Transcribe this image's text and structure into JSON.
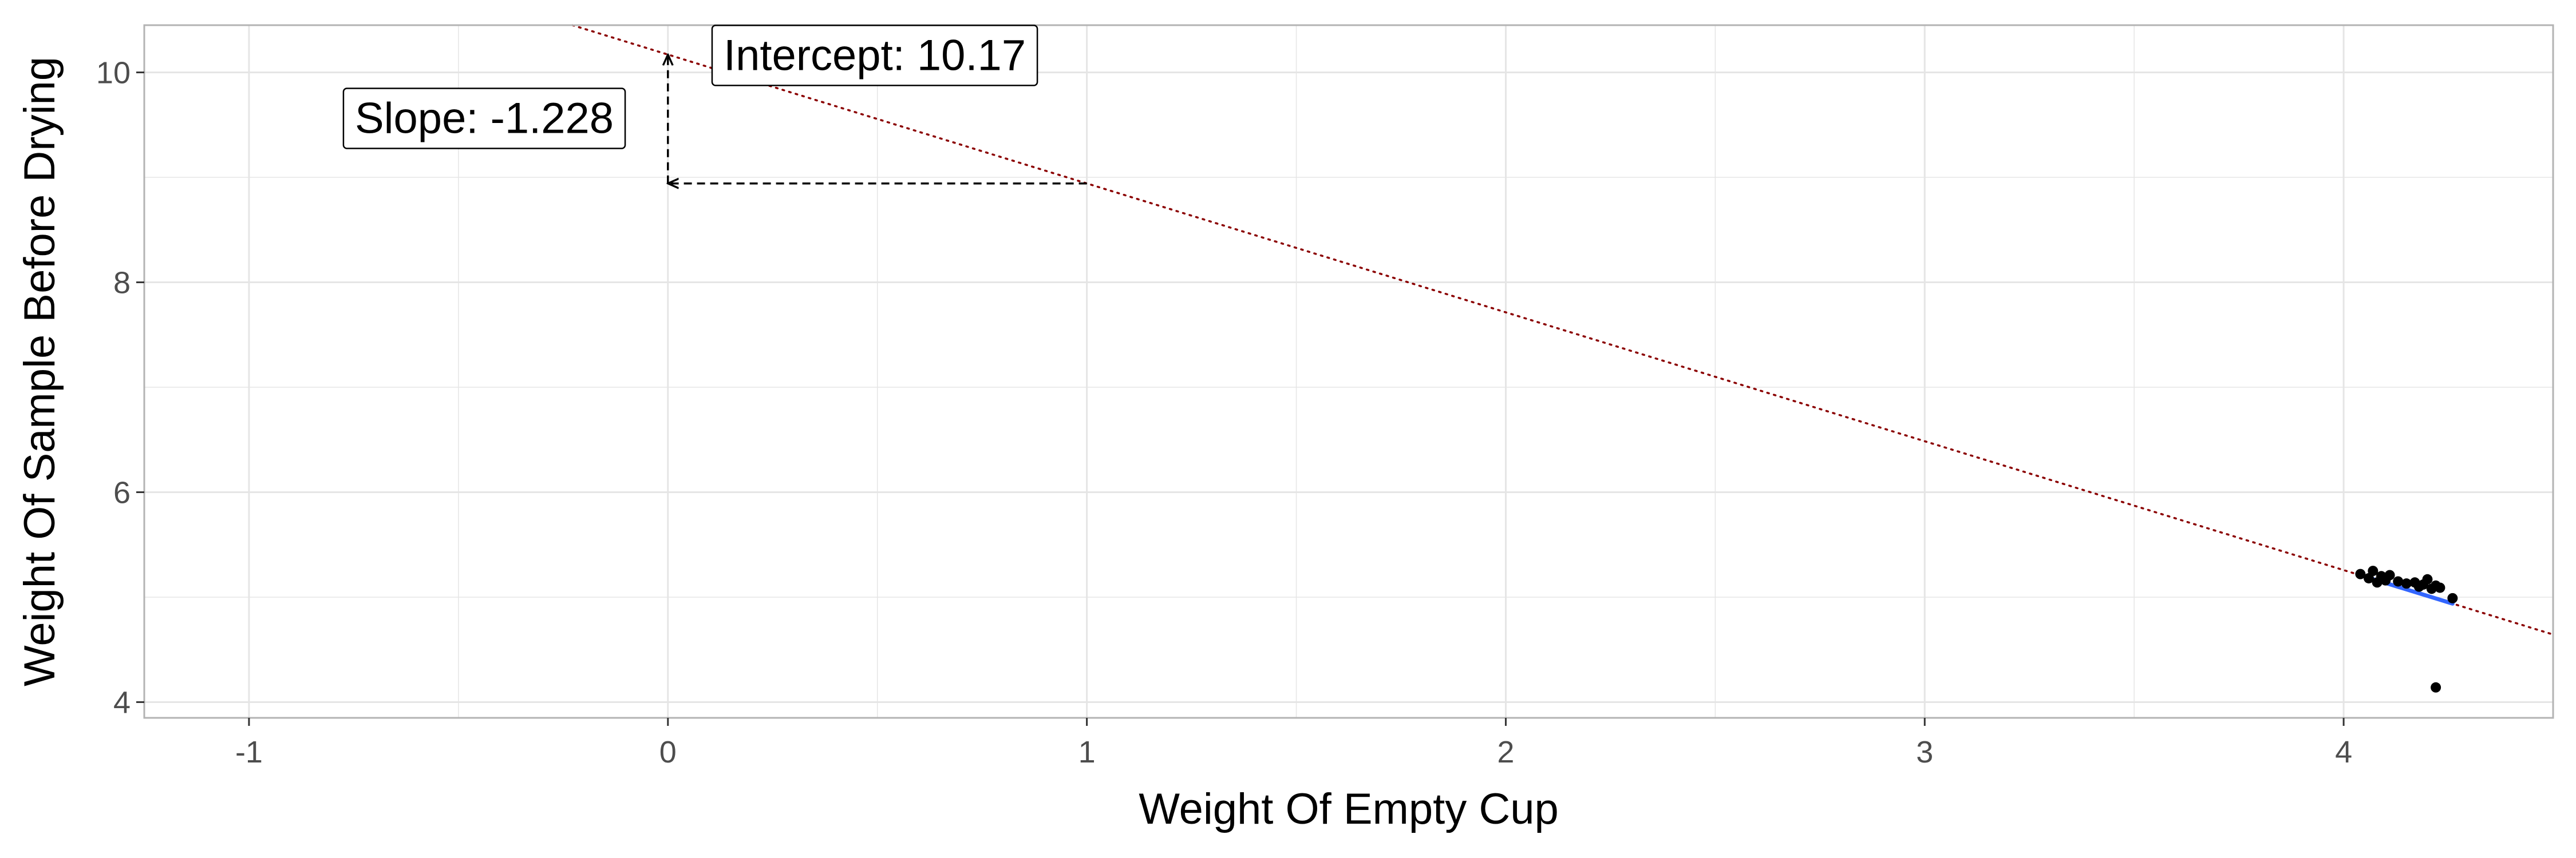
{
  "chart_data": {
    "type": "scatter",
    "title": "",
    "xlabel": "Weight Of Empty Cup",
    "ylabel": "Weight Of Sample Before Drying",
    "xlim": [
      -1.25,
      4.5
    ],
    "ylim": [
      3.85,
      10.45
    ],
    "x_ticks": [
      -1,
      0,
      1,
      2,
      3,
      4
    ],
    "y_ticks": [
      4,
      6,
      8,
      10
    ],
    "x_tick_labels": [
      "-1",
      "0",
      "1",
      "2",
      "3",
      "4"
    ],
    "y_tick_labels": [
      "4",
      "6",
      "8",
      "10"
    ],
    "grid": true,
    "points": [
      {
        "x": 4.04,
        "y": 5.22
      },
      {
        "x": 4.06,
        "y": 5.18
      },
      {
        "x": 4.07,
        "y": 5.25
      },
      {
        "x": 4.08,
        "y": 5.14
      },
      {
        "x": 4.09,
        "y": 5.2
      },
      {
        "x": 4.1,
        "y": 5.16
      },
      {
        "x": 4.11,
        "y": 5.21
      },
      {
        "x": 4.13,
        "y": 5.15
      },
      {
        "x": 4.15,
        "y": 5.13
      },
      {
        "x": 4.17,
        "y": 5.14
      },
      {
        "x": 4.18,
        "y": 5.1
      },
      {
        "x": 4.19,
        "y": 5.12
      },
      {
        "x": 4.2,
        "y": 5.17
      },
      {
        "x": 4.21,
        "y": 5.08
      },
      {
        "x": 4.22,
        "y": 5.11
      },
      {
        "x": 4.23,
        "y": 5.09
      },
      {
        "x": 4.26,
        "y": 4.99
      },
      {
        "x": 4.22,
        "y": 4.14
      }
    ],
    "fit_line": {
      "intercept": 10.17,
      "slope": -1.228,
      "color": "#8b0000",
      "style": "dotted"
    },
    "smooth_line": {
      "x": [
        4.04,
        4.26
      ],
      "color": "#3366ff"
    },
    "slope_guide": {
      "from_x": 0,
      "to_x": 1
    },
    "annotations": {
      "intercept_label": "Intercept: 10.17",
      "slope_label": "Slope: -1.228",
      "intercept_anchor": {
        "x": 0.1,
        "y": 10.17
      },
      "slope_anchor": {
        "x": -0.78,
        "y": 9.57
      }
    },
    "colors": {
      "points": "#000000",
      "grid": "#e5e5e5",
      "panel_border": "#b3b3b3",
      "guide": "#000000"
    }
  }
}
